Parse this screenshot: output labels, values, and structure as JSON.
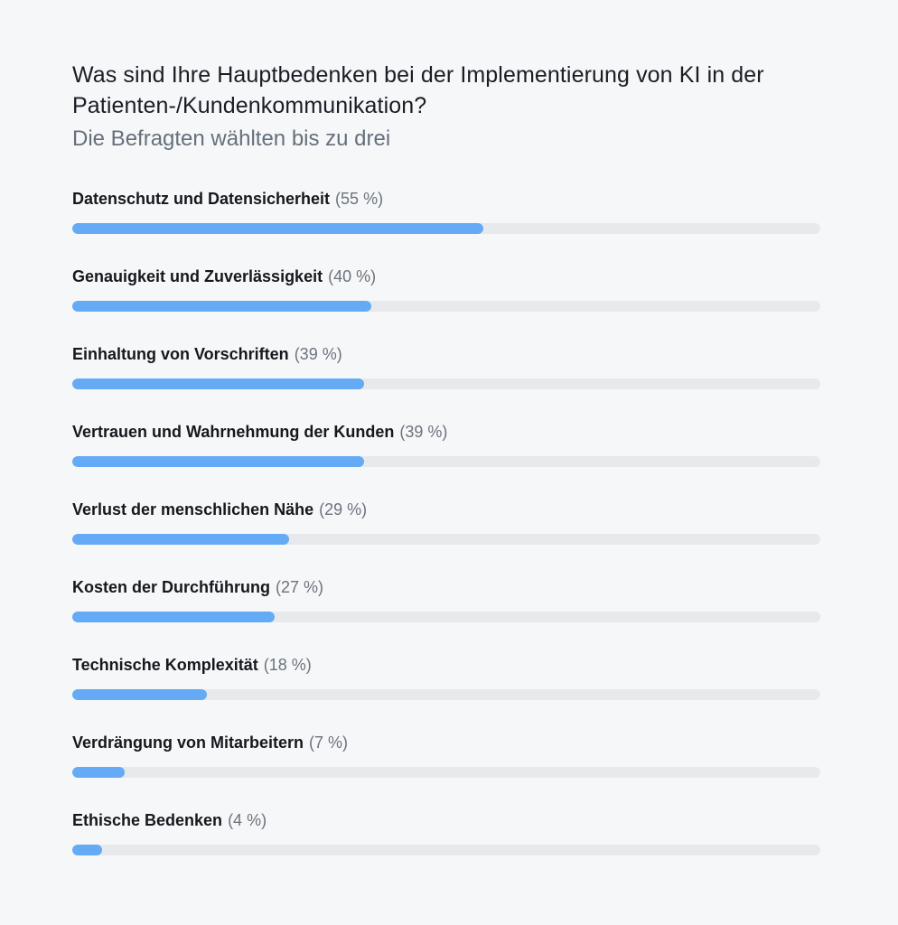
{
  "chart_data": {
    "type": "bar",
    "title": "Was sind Ihre Hauptbedenken bei der Implementierung von KI in der Patienten-/Kundenkommunikation?",
    "subtitle": "Die Befragten wählten bis zu drei",
    "xlim": [
      0,
      100
    ],
    "bar_color": "#64aaf5",
    "track_color": "#e7e9ec",
    "categories": [
      "Datenschutz und Datensicherheit",
      "Genauigkeit und Zuverlässigkeit",
      "Einhaltung von Vorschriften",
      "Vertrauen und Wahrnehmung der Kunden",
      "Verlust der menschlichen Nähe",
      "Kosten der Durchführung",
      "Technische Komplexität",
      "Verdrängung von Mitarbeitern",
      "Ethische Bedenken"
    ],
    "values": [
      55,
      40,
      39,
      39,
      29,
      27,
      18,
      7,
      4
    ],
    "value_labels": [
      "(55 %)",
      "(40 %)",
      "(39 %)",
      "(39 %)",
      "(29 %)",
      "(27 %)",
      "(18 %)",
      "(7 %)",
      "(4 %)"
    ]
  }
}
